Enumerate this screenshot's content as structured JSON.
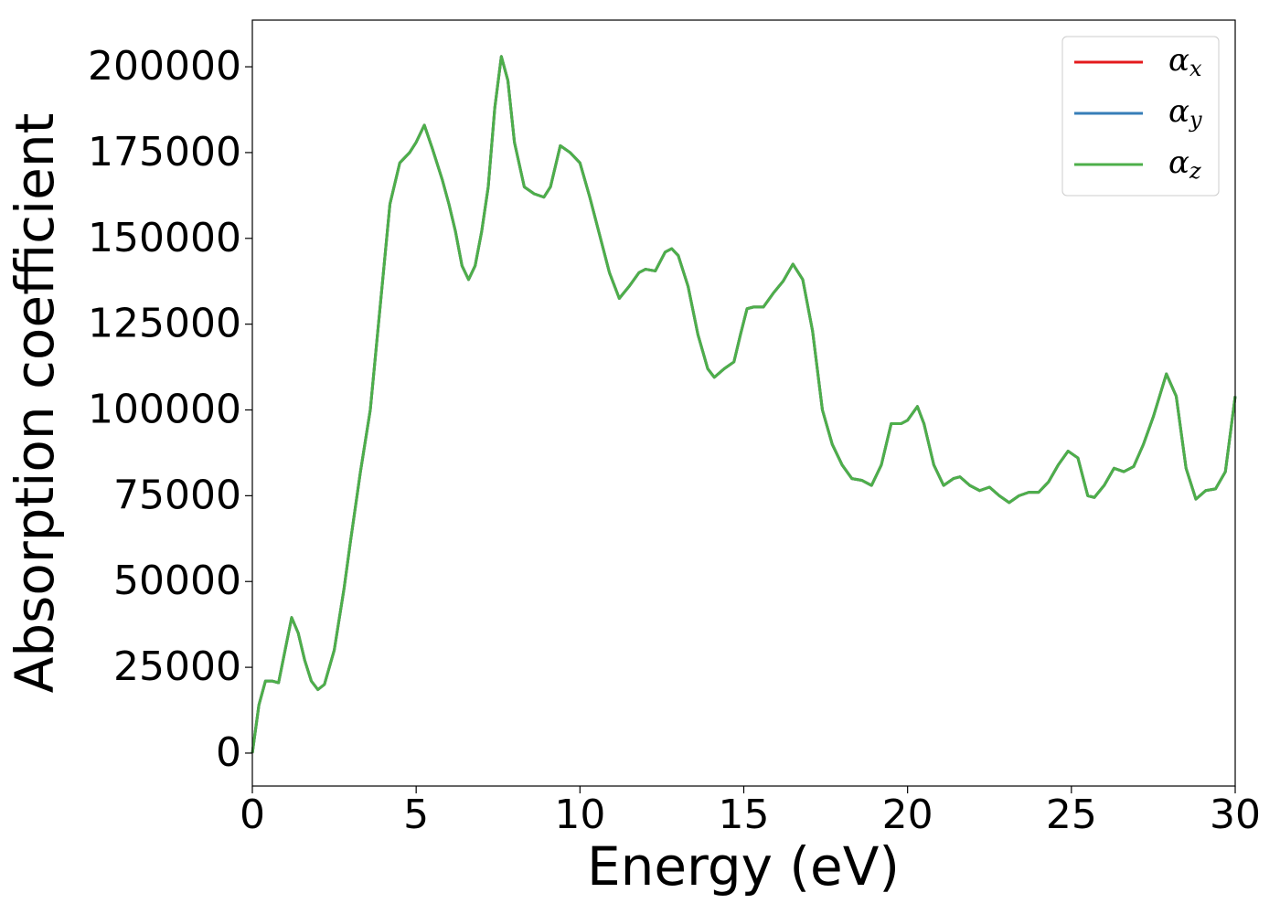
{
  "chart_data": {
    "type": "line",
    "xlabel": "Energy (eV)",
    "ylabel": "Absorption coefficient",
    "x": [
      0,
      0.2,
      0.4,
      0.6,
      0.8,
      1.0,
      1.2,
      1.4,
      1.6,
      1.8,
      2.0,
      2.2,
      2.5,
      2.8,
      3.0,
      3.3,
      3.6,
      3.9,
      4.2,
      4.5,
      4.8,
      5.0,
      5.25,
      5.5,
      5.8,
      6.0,
      6.2,
      6.4,
      6.6,
      6.8,
      7.0,
      7.2,
      7.4,
      7.6,
      7.8,
      8.0,
      8.3,
      8.6,
      8.9,
      9.1,
      9.4,
      9.7,
      10.0,
      10.3,
      10.6,
      10.9,
      11.2,
      11.5,
      11.8,
      12.0,
      12.3,
      12.6,
      12.8,
      13.0,
      13.3,
      13.6,
      13.9,
      14.1,
      14.4,
      14.7,
      14.9,
      15.1,
      15.3,
      15.6,
      15.9,
      16.2,
      16.5,
      16.8,
      17.1,
      17.4,
      17.7,
      18.0,
      18.3,
      18.6,
      18.9,
      19.2,
      19.5,
      19.8,
      20.0,
      20.3,
      20.5,
      20.8,
      21.1,
      21.4,
      21.6,
      21.9,
      22.2,
      22.5,
      22.8,
      23.1,
      23.4,
      23.7,
      24.0,
      24.3,
      24.6,
      24.9,
      25.2,
      25.5,
      25.7,
      26.0,
      26.3,
      26.6,
      26.9,
      27.2,
      27.5,
      27.9,
      28.2,
      28.5,
      28.8,
      29.1,
      29.4,
      29.7,
      30.0
    ],
    "series": [
      {
        "name": "αx",
        "color": "#e41a1c",
        "values": [
          0,
          14000,
          21000,
          21000,
          20500,
          30000,
          39500,
          35000,
          27000,
          21000,
          18500,
          20000,
          30000,
          48000,
          62000,
          82000,
          100000,
          130000,
          160000,
          172000,
          175000,
          178000,
          183000,
          176000,
          167000,
          160000,
          152000,
          142000,
          138000,
          142000,
          152000,
          165000,
          188000,
          203000,
          196000,
          178000,
          165000,
          163000,
          162000,
          165000,
          177000,
          175000,
          172000,
          162000,
          151000,
          140000,
          132500,
          136000,
          140000,
          141000,
          140500,
          146000,
          147000,
          145000,
          136000,
          122000,
          112000,
          109500,
          112000,
          114000,
          122000,
          129500,
          130000,
          130000,
          134000,
          137500,
          142500,
          138000,
          123000,
          100000,
          90000,
          84000,
          80000,
          79500,
          78000,
          84000,
          96000,
          96000,
          97000,
          101000,
          96000,
          84000,
          78000,
          80000,
          80500,
          78000,
          76500,
          77500,
          75000,
          73000,
          75000,
          76000,
          76000,
          79000,
          84000,
          88000,
          86000,
          75000,
          74500,
          78000,
          83000,
          82000,
          83500,
          90000,
          98000,
          110500,
          104000,
          83000,
          74000,
          76500,
          77000,
          82000,
          104000
        ]
      },
      {
        "name": "αy",
        "color": "#377eb8",
        "values": [
          0,
          14000,
          21000,
          21000,
          20500,
          30000,
          39500,
          35000,
          27000,
          21000,
          18500,
          20000,
          30000,
          48000,
          62000,
          82000,
          100000,
          130000,
          160000,
          172000,
          175000,
          178000,
          183000,
          176000,
          167000,
          160000,
          152000,
          142000,
          138000,
          142000,
          152000,
          165000,
          188000,
          203000,
          196000,
          178000,
          165000,
          163000,
          162000,
          165000,
          177000,
          175000,
          172000,
          162000,
          151000,
          140000,
          132500,
          136000,
          140000,
          141000,
          140500,
          146000,
          147000,
          145000,
          136000,
          122000,
          112000,
          109500,
          112000,
          114000,
          122000,
          129500,
          130000,
          130000,
          134000,
          137500,
          142500,
          138000,
          123000,
          100000,
          90000,
          84000,
          80000,
          79500,
          78000,
          84000,
          96000,
          96000,
          97000,
          101000,
          96000,
          84000,
          78000,
          80000,
          80500,
          78000,
          76500,
          77500,
          75000,
          73000,
          75000,
          76000,
          76000,
          79000,
          84000,
          88000,
          86000,
          75000,
          74500,
          78000,
          83000,
          82000,
          83500,
          90000,
          98000,
          110500,
          104000,
          83000,
          74000,
          76500,
          77000,
          82000,
          104000
        ]
      },
      {
        "name": "αz",
        "color": "#4daf4a",
        "values": [
          0,
          14000,
          21000,
          21000,
          20500,
          30000,
          39500,
          35000,
          27000,
          21000,
          18500,
          20000,
          30000,
          48000,
          62000,
          82000,
          100000,
          130000,
          160000,
          172000,
          175000,
          178000,
          183000,
          176000,
          167000,
          160000,
          152000,
          142000,
          138000,
          142000,
          152000,
          165000,
          188000,
          203000,
          196000,
          178000,
          165000,
          163000,
          162000,
          165000,
          177000,
          175000,
          172000,
          162000,
          151000,
          140000,
          132500,
          136000,
          140000,
          141000,
          140500,
          146000,
          147000,
          145000,
          136000,
          122000,
          112000,
          109500,
          112000,
          114000,
          122000,
          129500,
          130000,
          130000,
          134000,
          137500,
          142500,
          138000,
          123000,
          100000,
          90000,
          84000,
          80000,
          79500,
          78000,
          84000,
          96000,
          96000,
          97000,
          101000,
          96000,
          84000,
          78000,
          80000,
          80500,
          78000,
          76500,
          77500,
          75000,
          73000,
          75000,
          76000,
          76000,
          79000,
          84000,
          88000,
          86000,
          75000,
          74500,
          78000,
          83000,
          82000,
          83500,
          90000,
          98000,
          110500,
          104000,
          83000,
          74000,
          76500,
          77000,
          82000,
          104000
        ]
      }
    ],
    "xlim": [
      0,
      30
    ],
    "xticks": [
      0,
      5,
      10,
      15,
      20,
      25,
      30
    ],
    "ylim": [
      -9600,
      213600
    ],
    "yticks": [
      0,
      25000,
      50000,
      75000,
      100000,
      125000,
      150000,
      175000,
      200000
    ],
    "legend": "upper right",
    "grid": false
  }
}
